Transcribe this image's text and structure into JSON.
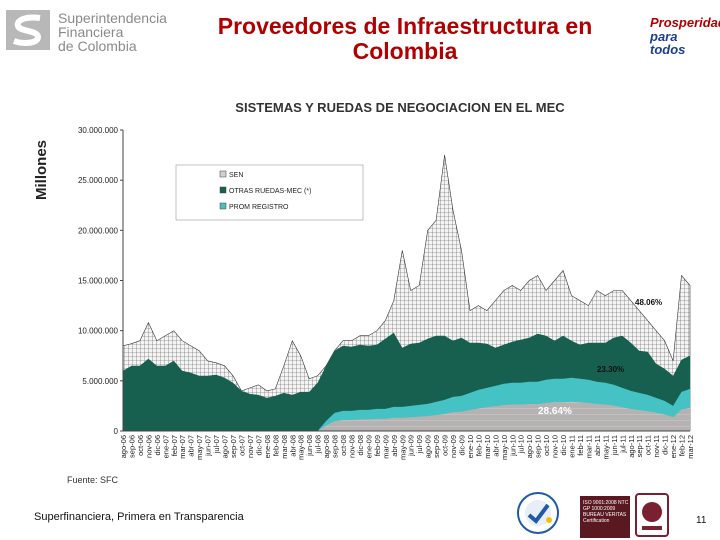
{
  "header": {
    "org_line1": "Superintendencia",
    "org_line2": "Financiera",
    "org_line3": "de Colombia",
    "title": "Proveedores de Infraestructura en Colombia",
    "gov_line1": "Prosperidad",
    "gov_line2": "para todos"
  },
  "footer": {
    "source": "Fuente: SFC",
    "tagline": "Superfinanciera, Primera en Transparencia",
    "page": "11",
    "cert_text": "ISO 9001:2008 NTC GP 1000:2009 BUREAU VERITAS Certification"
  },
  "colors": {
    "title_red": "#b00000",
    "sen": "#f2f2f2",
    "otras": "#17604f",
    "prom": "#45c2c4",
    "prom_band": "#b0b0b0"
  },
  "chart_data": {
    "type": "area",
    "title": "SISTEMAS Y RUEDAS DE NEGOCIACION EN EL MEC",
    "xlabel": "",
    "ylabel": "Millones",
    "ylim": [
      0,
      30000000
    ],
    "yticks": [
      "0",
      "5.000.000",
      "10.000.000",
      "15.000.000",
      "20.000.000",
      "25.000.000",
      "30.000.000"
    ],
    "legend_position": "top-left",
    "grid": false,
    "categories": [
      "ago-06",
      "sep-06",
      "oct-06",
      "nov-06",
      "dic-06",
      "ene-07",
      "feb-07",
      "mar-07",
      "abr-07",
      "may-07",
      "jun-07",
      "jul-07",
      "ago-07",
      "sep-07",
      "oct-07",
      "nov-07",
      "dic-07",
      "ene-08",
      "feb-08",
      "mar-08",
      "abr-08",
      "may-08",
      "jun-08",
      "jul-08",
      "ago-08",
      "sep-08",
      "oct-08",
      "nov-08",
      "dic-08",
      "ene-09",
      "feb-09",
      "mar-09",
      "abr-09",
      "may-09",
      "jun-09",
      "jul-09",
      "ago-09",
      "sep-09",
      "oct-09",
      "nov-09",
      "dic-09",
      "ene-10",
      "feb-10",
      "mar-10",
      "abr-10",
      "may-10",
      "jun-10",
      "jul-10",
      "ago-10",
      "sep-10",
      "oct-10",
      "nov-10",
      "dic-10",
      "ene-11",
      "feb-11",
      "mar-11",
      "abr-11",
      "may-11",
      "jun-11",
      "jul-11",
      "ago-11",
      "sep-11",
      "oct-11",
      "nov-11",
      "dic-11",
      "ene-12",
      "feb-12",
      "mar-12"
    ],
    "series": [
      {
        "name": "SEN",
        "values": [
          8500000,
          8700000,
          9000000,
          10800000,
          9000000,
          9500000,
          10000000,
          9000000,
          8500000,
          8000000,
          7000000,
          6800000,
          6500000,
          5500000,
          4000000,
          4300000,
          4600000,
          4000000,
          4200000,
          6500000,
          9000000,
          7500000,
          5200000,
          5500000,
          6500000,
          8000000,
          9000000,
          9000000,
          9500000,
          9500000,
          10000000,
          11000000,
          13000000,
          18000000,
          14000000,
          14500000,
          20000000,
          21000000,
          27500000,
          22000000,
          18000000,
          12000000,
          12500000,
          12000000,
          13000000,
          14000000,
          14500000,
          14000000,
          15000000,
          15500000,
          14000000,
          15000000,
          16000000,
          13500000,
          13000000,
          12500000,
          14000000,
          13500000,
          14000000,
          14000000,
          13000000,
          12000000,
          11000000,
          10000000,
          9000000,
          7000000,
          15500000,
          14500000
        ]
      },
      {
        "name": "OTRAS RUEDAS-MEC (*)",
        "values": [
          6000000,
          6500000,
          6500000,
          7200000,
          6500000,
          6500000,
          7000000,
          6000000,
          5800000,
          5500000,
          5500000,
          5600000,
          5300000,
          4800000,
          4000000,
          3700000,
          3600000,
          3300000,
          3500000,
          3800000,
          3600000,
          3900000,
          3900000,
          4800000,
          6500000,
          8000000,
          8500000,
          8400000,
          8600000,
          8500000,
          8600000,
          9200000,
          9800000,
          8300000,
          8700000,
          8800000,
          9200000,
          9500000,
          9500000,
          9000000,
          9300000,
          8800000,
          8800000,
          8700000,
          8300000,
          8600000,
          8900000,
          9100000,
          9300000,
          9700000,
          9500000,
          9000000,
          9500000,
          9000000,
          8600000,
          8800000,
          8800000,
          8800000,
          9300000,
          9500000,
          8800000,
          8000000,
          7900000,
          6700000,
          6200000,
          5500000,
          7100000,
          7500000
        ]
      },
      {
        "name": "PROM REGISTRO",
        "values": [
          0,
          0,
          0,
          0,
          0,
          0,
          0,
          0,
          0,
          0,
          0,
          0,
          0,
          0,
          0,
          0,
          0,
          0,
          0,
          0,
          0,
          0,
          0,
          0,
          1000000,
          1800000,
          2000000,
          2000000,
          2100000,
          2100000,
          2200000,
          2200000,
          2400000,
          2400000,
          2500000,
          2600000,
          2700000,
          2900000,
          3100000,
          3400000,
          3500000,
          3800000,
          4100000,
          4300000,
          4500000,
          4700000,
          4800000,
          4800000,
          4900000,
          4900000,
          5100000,
          5200000,
          5200000,
          5300000,
          5200000,
          5100000,
          4900000,
          4800000,
          4600000,
          4300000,
          4000000,
          3800000,
          3600000,
          3300000,
          3000000,
          2500000,
          3900000,
          4200000
        ]
      }
    ],
    "annotations": [
      "48.06%",
      "23.30%",
      "28.64%"
    ]
  }
}
